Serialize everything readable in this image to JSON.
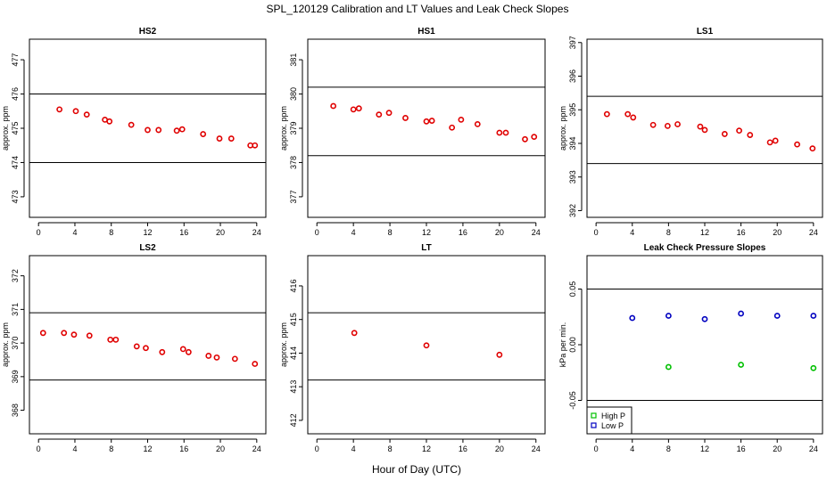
{
  "figure": {
    "title": "SPL_120129  Calibration and LT Values and Leak Check Slopes",
    "xlabel": "Hour of Day (UTC)"
  },
  "colors": {
    "red": "#e00000",
    "green": "#00c000",
    "blue": "#0000c0",
    "axes": "#000000"
  },
  "chart_data": [
    {
      "type": "scatter",
      "title": "HS2",
      "ylabel": "approx. ppm",
      "xlim": [
        -1,
        25
      ],
      "ylim": [
        472.4,
        477.6
      ],
      "xticks": [
        0,
        4,
        8,
        12,
        16,
        20,
        24
      ],
      "yticks": [
        473,
        474,
        475,
        476,
        477
      ],
      "hlines": [
        474,
        476
      ],
      "series": [
        {
          "color": "#e00000",
          "x": [
            2.3,
            4.1,
            5.3,
            7.3,
            7.8,
            10.2,
            12.0,
            13.2,
            15.2,
            15.8,
            18.1,
            19.9,
            21.2,
            23.3,
            23.8
          ],
          "y": [
            475.55,
            475.5,
            475.4,
            475.25,
            475.2,
            475.1,
            474.95,
            474.95,
            474.93,
            474.97,
            474.83,
            474.7,
            474.7,
            474.5,
            474.5
          ]
        }
      ]
    },
    {
      "type": "scatter",
      "title": "HS1",
      "ylabel": "approx. ppm",
      "xlim": [
        -1,
        25
      ],
      "ylim": [
        376.4,
        381.6
      ],
      "xticks": [
        0,
        4,
        8,
        12,
        16,
        20,
        24
      ],
      "yticks": [
        377,
        378,
        379,
        380,
        381
      ],
      "hlines": [
        378.2,
        380.2
      ],
      "series": [
        {
          "color": "#e00000",
          "x": [
            1.8,
            4.0,
            4.6,
            6.8,
            7.9,
            9.7,
            12.0,
            12.6,
            14.8,
            15.8,
            17.6,
            20.0,
            20.7,
            22.8,
            23.8
          ],
          "y": [
            379.65,
            379.55,
            379.58,
            379.4,
            379.45,
            379.3,
            379.2,
            379.22,
            379.02,
            379.25,
            379.12,
            378.87,
            378.87,
            378.68,
            378.75
          ]
        }
      ]
    },
    {
      "type": "scatter",
      "title": "LS1",
      "ylabel": "approx. ppm",
      "xlim": [
        -1,
        25
      ],
      "ylim": [
        391.8,
        397.1
      ],
      "xticks": [
        0,
        4,
        8,
        12,
        16,
        20,
        24
      ],
      "yticks": [
        392,
        393,
        394,
        395,
        396,
        397
      ],
      "hlines": [
        393.4,
        395.4
      ],
      "series": [
        {
          "color": "#e00000",
          "x": [
            1.2,
            3.5,
            4.1,
            6.3,
            7.9,
            9.0,
            11.5,
            12.0,
            14.2,
            15.8,
            17.0,
            19.2,
            19.8,
            22.2,
            23.9
          ],
          "y": [
            394.87,
            394.87,
            394.77,
            394.55,
            394.52,
            394.57,
            394.5,
            394.4,
            394.28,
            394.38,
            394.25,
            394.03,
            394.08,
            393.97,
            393.85
          ]
        }
      ]
    },
    {
      "type": "scatter",
      "title": "LS2",
      "ylabel": "approx. ppm",
      "xlim": [
        -1,
        25
      ],
      "ylim": [
        367.3,
        372.6
      ],
      "xticks": [
        0,
        4,
        8,
        12,
        16,
        20,
        24
      ],
      "yticks": [
        368,
        369,
        370,
        371,
        372
      ],
      "hlines": [
        368.9,
        370.9
      ],
      "series": [
        {
          "color": "#e00000",
          "x": [
            0.5,
            2.8,
            3.9,
            5.6,
            7.9,
            8.5,
            10.8,
            11.8,
            13.6,
            15.9,
            16.5,
            18.7,
            19.6,
            21.6,
            23.8
          ],
          "y": [
            370.3,
            370.3,
            370.25,
            370.22,
            370.1,
            370.1,
            369.9,
            369.85,
            369.73,
            369.82,
            369.73,
            369.62,
            369.57,
            369.53,
            369.38
          ]
        }
      ]
    },
    {
      "type": "scatter",
      "title": "LT",
      "ylabel": "approx. ppm",
      "xlim": [
        -1,
        25
      ],
      "ylim": [
        411.6,
        416.9
      ],
      "xticks": [
        0,
        4,
        8,
        12,
        16,
        20,
        24
      ],
      "yticks": [
        412,
        413,
        414,
        415,
        416
      ],
      "hlines": [
        413.2,
        415.2
      ],
      "series": [
        {
          "color": "#e00000",
          "x": [
            4.1,
            12.0,
            20.0
          ],
          "y": [
            414.6,
            414.23,
            413.95
          ]
        }
      ]
    },
    {
      "type": "scatter",
      "title": "Leak Check Pressure Slopes",
      "ylabel": "kPa per min.",
      "xlim": [
        -1,
        25
      ],
      "ylim": [
        -0.08,
        0.08
      ],
      "xticks": [
        0,
        4,
        8,
        12,
        16,
        20,
        24
      ],
      "yticks": [
        -0.05,
        0.0,
        0.05
      ],
      "ytick_labels": [
        "-0.05",
        "0.00",
        "0.05"
      ],
      "hlines": [
        -0.05,
        0.05
      ],
      "legend": "bottom-left",
      "series": [
        {
          "name": "High P",
          "color": "#00c000",
          "x": [
            8,
            16,
            24
          ],
          "y": [
            -0.02,
            -0.018,
            -0.021
          ]
        },
        {
          "name": "Low P",
          "color": "#0000c0",
          "x": [
            4,
            8,
            12,
            16,
            20,
            24
          ],
          "y": [
            0.024,
            0.026,
            0.023,
            0.028,
            0.026,
            0.026
          ]
        }
      ]
    }
  ]
}
